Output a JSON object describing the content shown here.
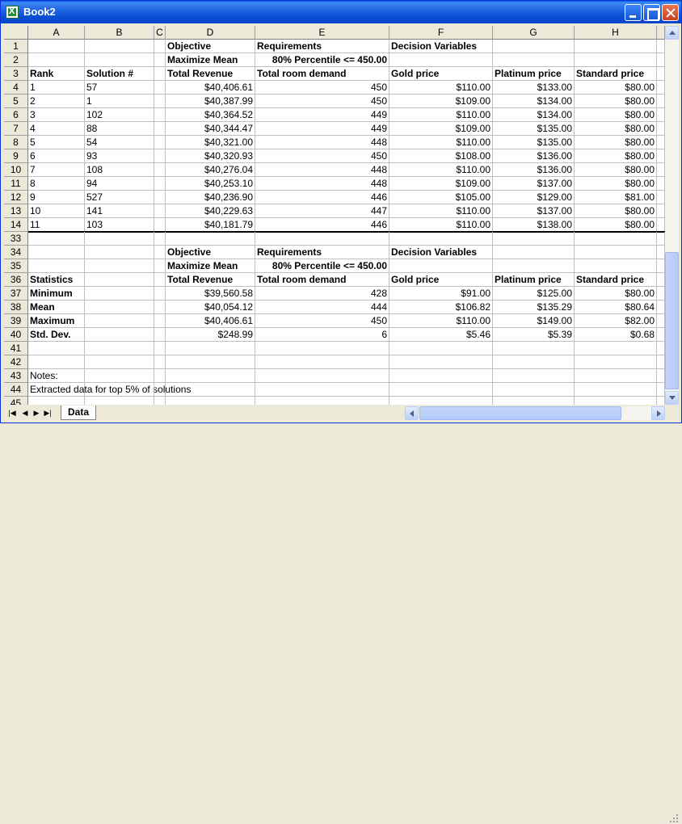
{
  "window": {
    "title": "Book2"
  },
  "sheet_tab": "Data",
  "columns": [
    "A",
    "B",
    "C",
    "D",
    "E",
    "F",
    "G",
    "H"
  ],
  "rows": [
    {
      "num": "1",
      "cells": [
        "",
        "",
        "",
        "Objective",
        "Requirements",
        "Decision Variables",
        "",
        ""
      ]
    },
    {
      "num": "2",
      "cells": [
        "",
        "",
        "",
        "Maximize Mean",
        "80% Percentile <= 450.00",
        "",
        "",
        ""
      ]
    },
    {
      "num": "3",
      "cells": [
        "Rank",
        "Solution #",
        "",
        "Total Revenue",
        "Total room demand",
        "Gold price",
        "Platinum price",
        "Standard price"
      ]
    },
    {
      "num": "4",
      "cells": [
        "1",
        "57",
        "",
        "$40,406.61",
        "450",
        "$110.00",
        "$133.00",
        "$80.00"
      ]
    },
    {
      "num": "5",
      "cells": [
        "2",
        "1",
        "",
        "$40,387.99",
        "450",
        "$109.00",
        "$134.00",
        "$80.00"
      ]
    },
    {
      "num": "6",
      "cells": [
        "3",
        "102",
        "",
        "$40,364.52",
        "449",
        "$110.00",
        "$134.00",
        "$80.00"
      ]
    },
    {
      "num": "7",
      "cells": [
        "4",
        "88",
        "",
        "$40,344.47",
        "449",
        "$109.00",
        "$135.00",
        "$80.00"
      ]
    },
    {
      "num": "8",
      "cells": [
        "5",
        "54",
        "",
        "$40,321.00",
        "448",
        "$110.00",
        "$135.00",
        "$80.00"
      ]
    },
    {
      "num": "9",
      "cells": [
        "6",
        "93",
        "",
        "$40,320.93",
        "450",
        "$108.00",
        "$136.00",
        "$80.00"
      ]
    },
    {
      "num": "10",
      "cells": [
        "7",
        "108",
        "",
        "$40,276.04",
        "448",
        "$110.00",
        "$136.00",
        "$80.00"
      ]
    },
    {
      "num": "11",
      "cells": [
        "8",
        "94",
        "",
        "$40,253.10",
        "448",
        "$109.00",
        "$137.00",
        "$80.00"
      ]
    },
    {
      "num": "12",
      "cells": [
        "9",
        "527",
        "",
        "$40,236.90",
        "446",
        "$105.00",
        "$129.00",
        "$81.00"
      ]
    },
    {
      "num": "13",
      "cells": [
        "10",
        "141",
        "",
        "$40,229.63",
        "447",
        "$110.00",
        "$137.00",
        "$80.00"
      ]
    },
    {
      "num": "14",
      "cells": [
        "11",
        "103",
        "",
        "$40,181.79",
        "446",
        "$110.00",
        "$138.00",
        "$80.00"
      ]
    },
    {
      "num": "33",
      "cells": [
        "",
        "",
        "",
        "",
        "",
        "",
        "",
        ""
      ]
    },
    {
      "num": "34",
      "cells": [
        "",
        "",
        "",
        "Objective",
        "Requirements",
        "Decision Variables",
        "",
        ""
      ]
    },
    {
      "num": "35",
      "cells": [
        "",
        "",
        "",
        "Maximize Mean",
        "80% Percentile <= 450.00",
        "",
        "",
        ""
      ]
    },
    {
      "num": "36",
      "cells": [
        "Statistics",
        "",
        "",
        "Total Revenue",
        "Total room demand",
        "Gold price",
        "Platinum price",
        "Standard price"
      ]
    },
    {
      "num": "37",
      "cells": [
        "Minimum",
        "",
        "",
        "$39,560.58",
        "428",
        "$91.00",
        "$125.00",
        "$80.00"
      ]
    },
    {
      "num": "38",
      "cells": [
        "Mean",
        "",
        "",
        "$40,054.12",
        "444",
        "$106.82",
        "$135.29",
        "$80.64"
      ]
    },
    {
      "num": "39",
      "cells": [
        "Maximum",
        "",
        "",
        "$40,406.61",
        "450",
        "$110.00",
        "$149.00",
        "$82.00"
      ]
    },
    {
      "num": "40",
      "cells": [
        "Std. Dev.",
        "",
        "",
        "$248.99",
        "6",
        "$5.46",
        "$5.39",
        "$0.68"
      ]
    },
    {
      "num": "41",
      "cells": [
        "",
        "",
        "",
        "",
        "",
        "",
        "",
        ""
      ]
    },
    {
      "num": "42",
      "cells": [
        "",
        "",
        "",
        "",
        "",
        "",
        "",
        ""
      ]
    },
    {
      "num": "43",
      "cells": [
        "Notes:",
        "",
        "",
        "",
        "",
        "",
        "",
        ""
      ]
    },
    {
      "num": "44",
      "cells": [
        "Extracted data for top 5% of solutions",
        "",
        "",
        "",
        "",
        "",
        "",
        ""
      ]
    },
    {
      "num": "45",
      "cells": [
        "",
        "",
        "",
        "",
        "",
        "",
        "",
        ""
      ]
    }
  ]
}
